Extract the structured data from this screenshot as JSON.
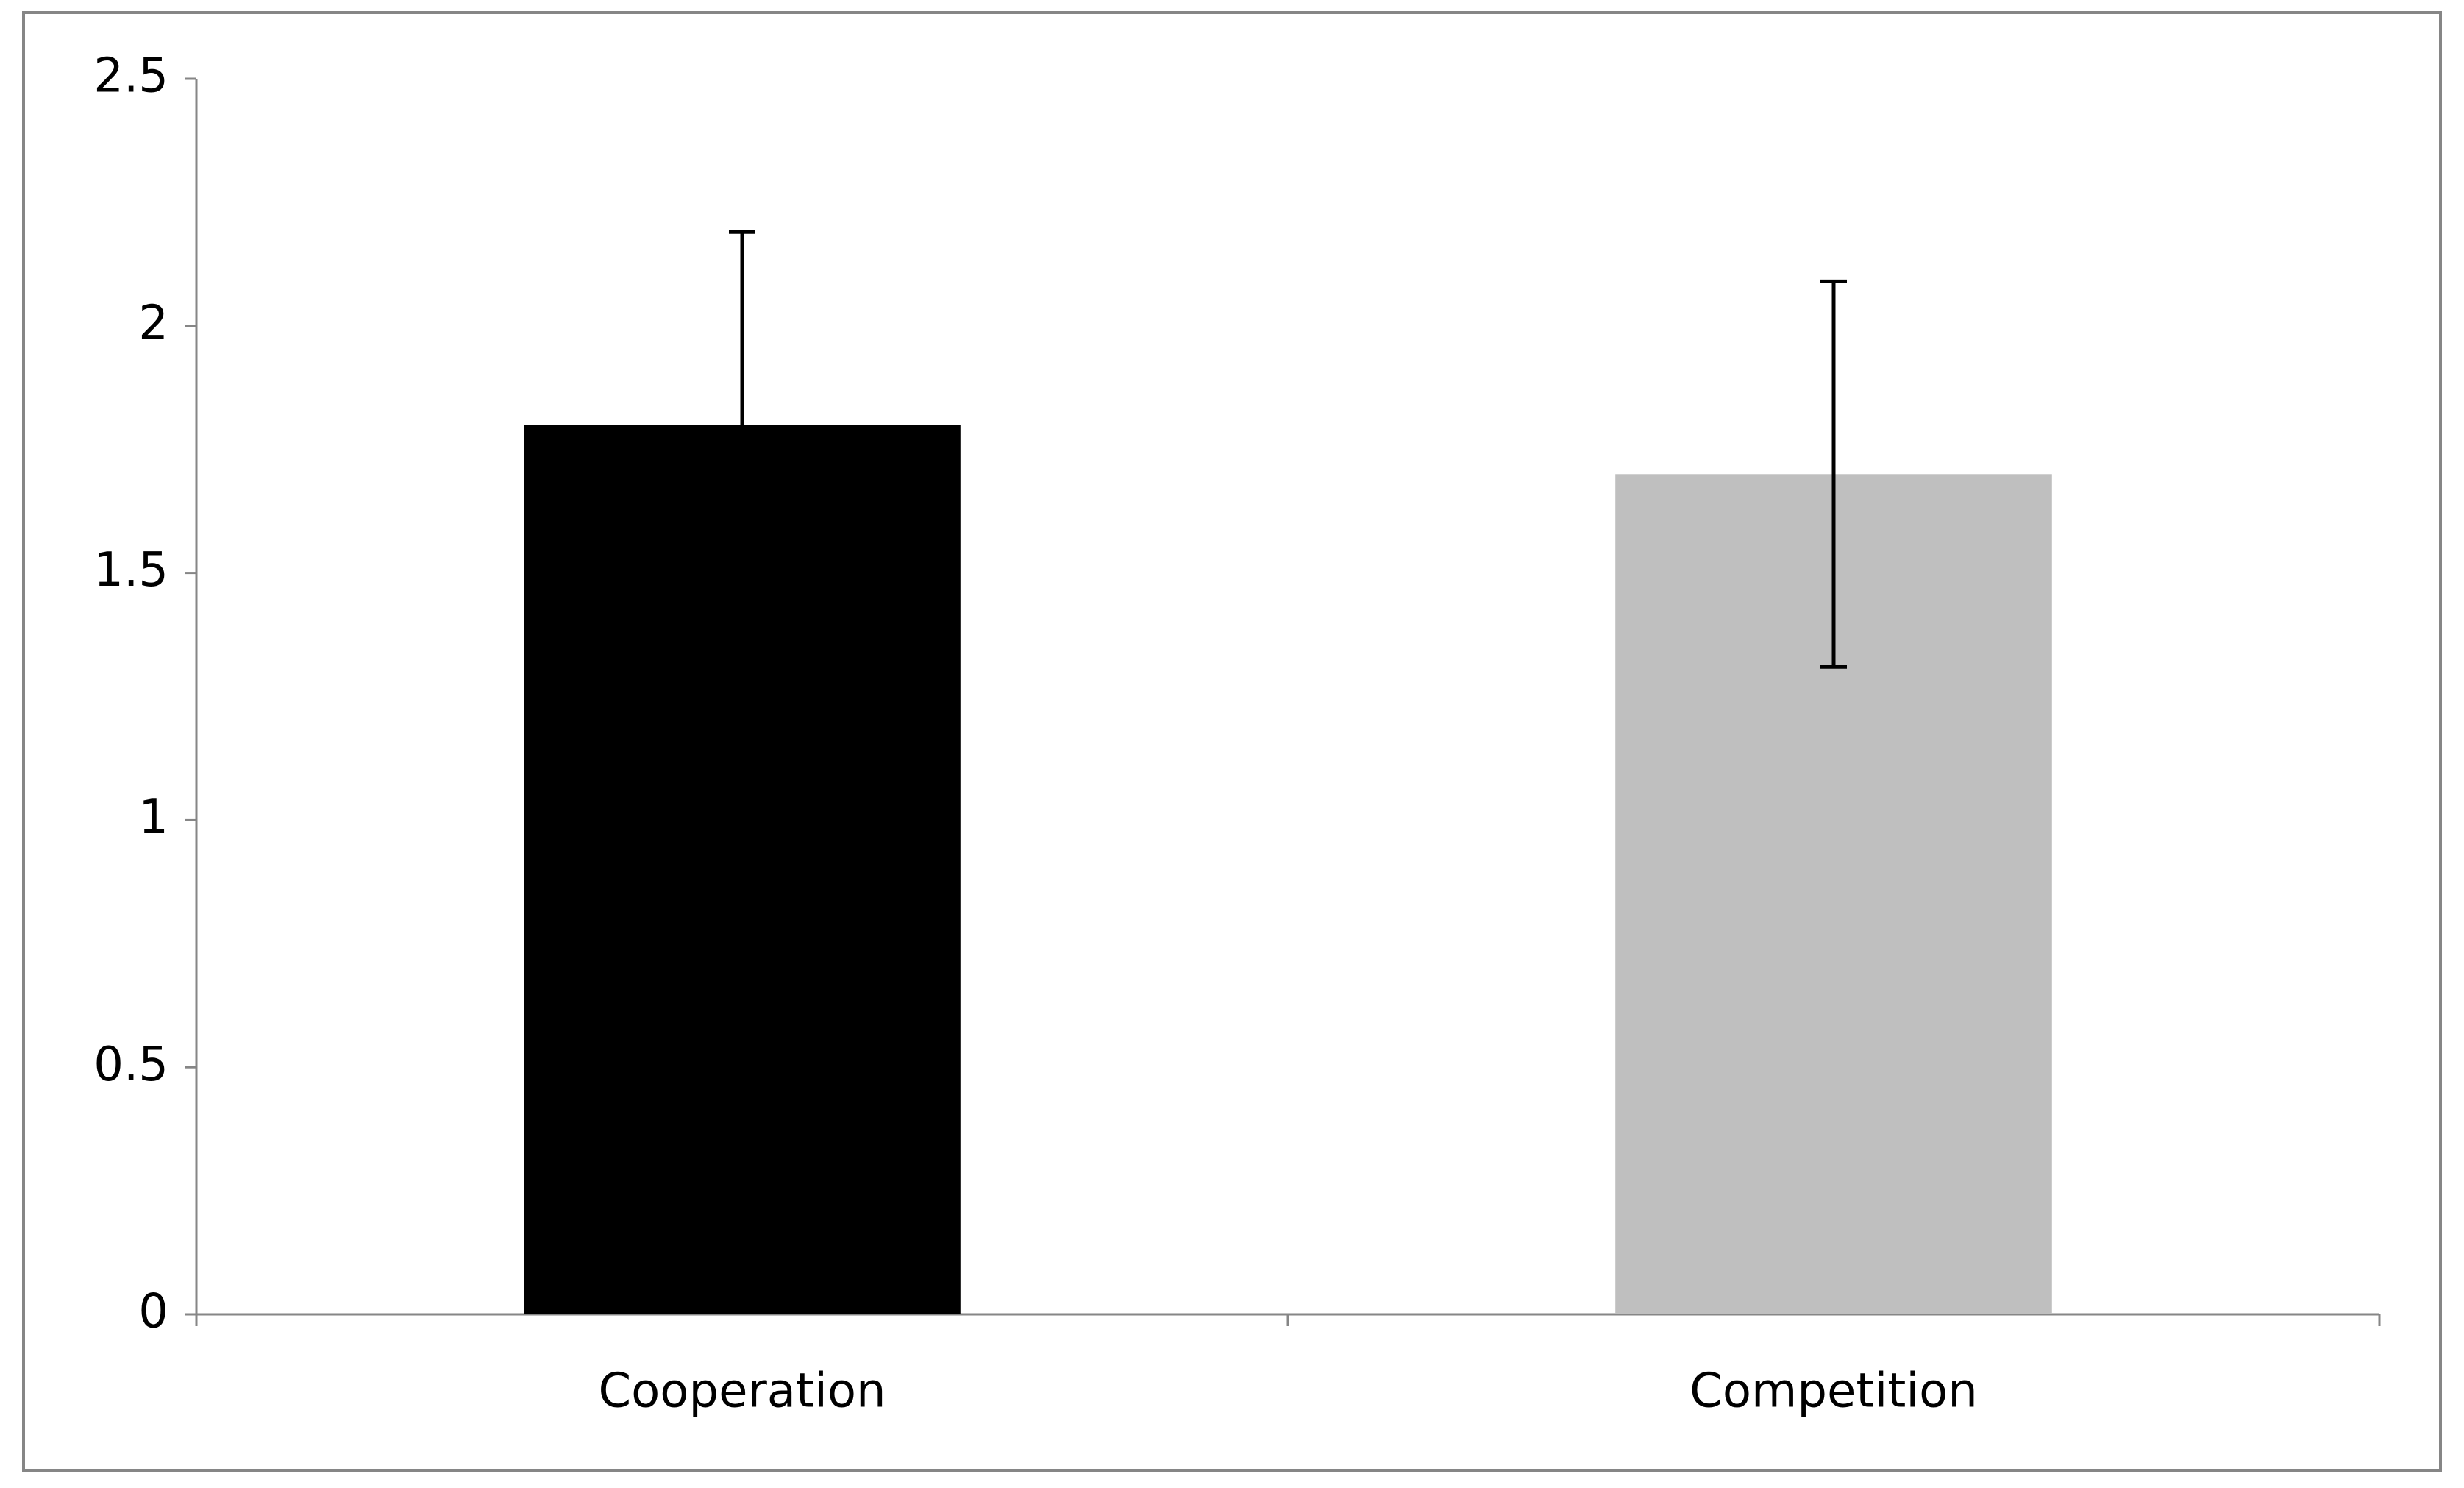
{
  "chart_data": {
    "type": "bar",
    "categories": [
      "Cooperation",
      "Competition"
    ],
    "values": [
      1.8,
      1.7
    ],
    "errors": [
      0.39,
      0.39
    ],
    "colors": [
      "#000000",
      "#bfbfbf"
    ],
    "ylim": [
      0,
      2.5
    ],
    "yticks": [
      0,
      0.5,
      1,
      1.5,
      2,
      2.5
    ],
    "grid": false
  }
}
